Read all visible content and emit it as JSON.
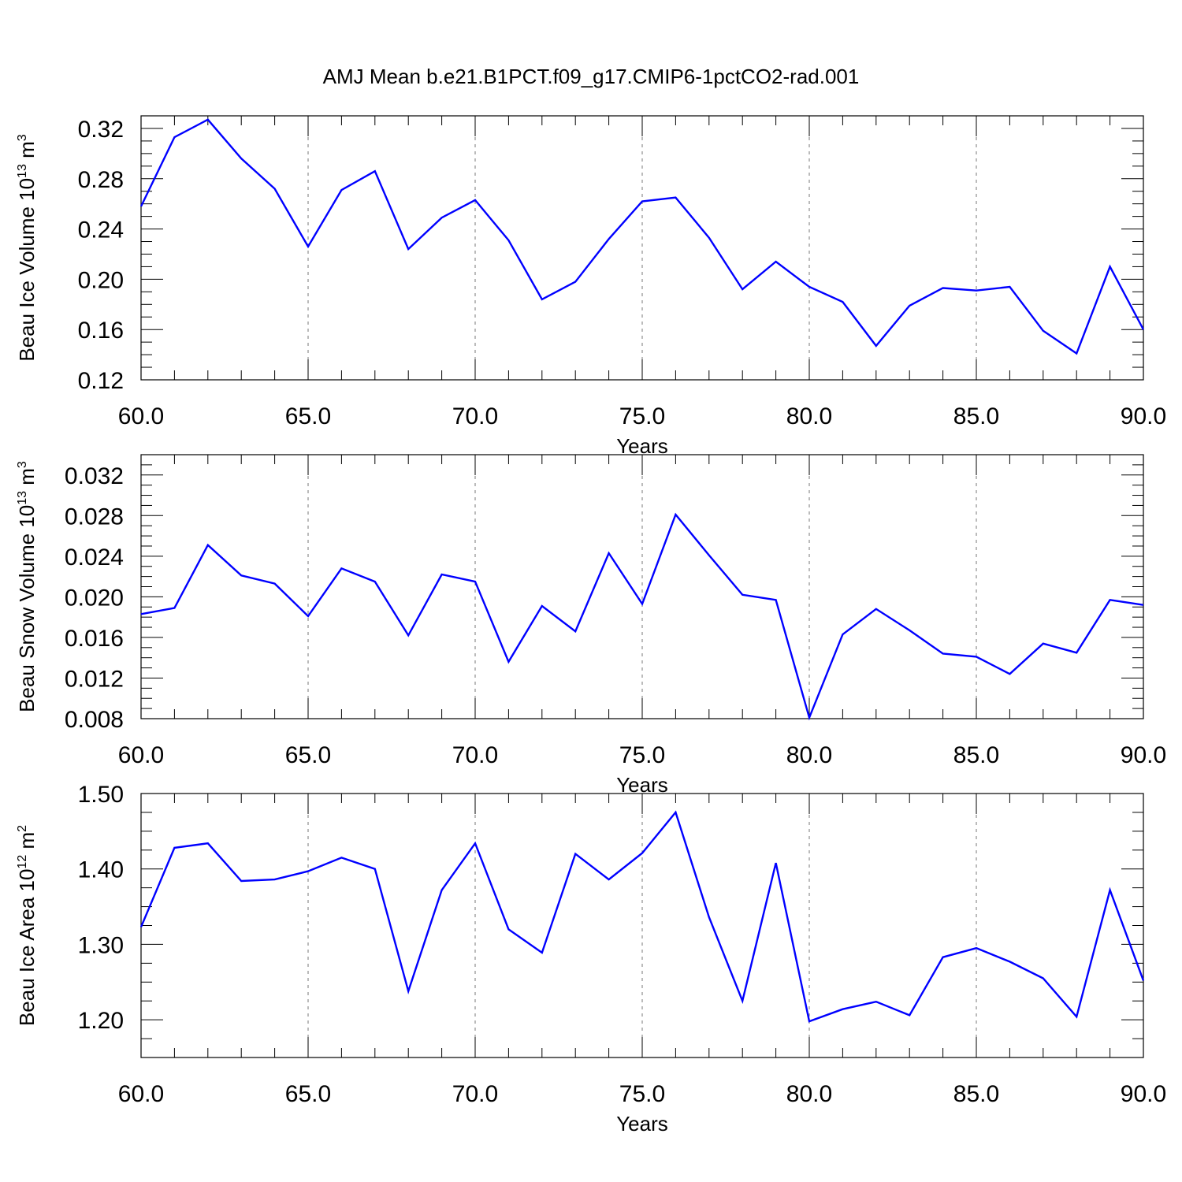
{
  "title": "AMJ Mean b.e21.B1PCT.f09_g17.CMIP6-1pctCO2-rad.001",
  "colors": {
    "line": "#0000ff",
    "axis": "#000000",
    "grid": "#777777"
  },
  "chart_data": [
    {
      "type": "line",
      "title": "",
      "xlabel": "Years",
      "ylabel_main": "Beau Ice Volume 10",
      "ylabel_sup": "13",
      "ylabel_unit": "m",
      "ylabel_unit_sup": "3",
      "xlim": [
        60,
        90
      ],
      "ylim": [
        0.12,
        0.33
      ],
      "xticks": [
        "60.0",
        "65.0",
        "70.0",
        "75.0",
        "80.0",
        "85.0",
        "90.0"
      ],
      "yticks": [
        "0.12",
        "0.16",
        "0.20",
        "0.24",
        "0.28",
        "0.32"
      ],
      "x": [
        60,
        61,
        62,
        63,
        64,
        65,
        66,
        67,
        68,
        69,
        70,
        71,
        72,
        73,
        74,
        75,
        76,
        77,
        78,
        79,
        80,
        81,
        82,
        83,
        84,
        85,
        86,
        87,
        88,
        89,
        90
      ],
      "series": [
        {
          "values": [
            0.258,
            0.313,
            0.327,
            0.296,
            0.272,
            0.226,
            0.271,
            0.286,
            0.224,
            0.249,
            0.263,
            0.231,
            0.184,
            0.198,
            0.232,
            0.262,
            0.265,
            0.233,
            0.192,
            0.214,
            0.194,
            0.182,
            0.147,
            0.179,
            0.193,
            0.191,
            0.194,
            0.159,
            0.141,
            0.21,
            0.16
          ]
        }
      ],
      "grid": "dashed vertical at major x ticks"
    },
    {
      "type": "line",
      "title": "",
      "xlabel": "Years",
      "ylabel_main": "Beau Snow Volume 10",
      "ylabel_sup": "13",
      "ylabel_unit": "m",
      "ylabel_unit_sup": "3",
      "xlim": [
        60,
        90
      ],
      "ylim": [
        0.008,
        0.034
      ],
      "xticks": [
        "60.0",
        "65.0",
        "70.0",
        "75.0",
        "80.0",
        "85.0",
        "90.0"
      ],
      "yticks": [
        "0.008",
        "0.012",
        "0.016",
        "0.020",
        "0.024",
        "0.028",
        "0.032"
      ],
      "x": [
        60,
        61,
        62,
        63,
        64,
        65,
        66,
        67,
        68,
        69,
        70,
        71,
        72,
        73,
        74,
        75,
        76,
        77,
        78,
        79,
        80,
        81,
        82,
        83,
        84,
        85,
        86,
        87,
        88,
        89,
        90
      ],
      "series": [
        {
          "values": [
            0.0183,
            0.0189,
            0.0251,
            0.0221,
            0.0213,
            0.0181,
            0.0228,
            0.0215,
            0.0162,
            0.0222,
            0.0215,
            0.0136,
            0.0191,
            0.0166,
            0.0243,
            0.0193,
            0.0281,
            0.0241,
            0.0202,
            0.0197,
            0.0081,
            0.0163,
            0.0188,
            0.0167,
            0.0144,
            0.0141,
            0.0124,
            0.0154,
            0.0145,
            0.0197,
            0.0192
          ]
        }
      ],
      "grid": "dashed vertical at major x ticks"
    },
    {
      "type": "line",
      "title": "",
      "xlabel": "Years",
      "ylabel_main": "Beau Ice Area 10",
      "ylabel_sup": "12",
      "ylabel_unit": "m",
      "ylabel_unit_sup": "2",
      "xlim": [
        60,
        90
      ],
      "ylim": [
        1.15,
        1.5
      ],
      "xticks": [
        "60.0",
        "65.0",
        "70.0",
        "75.0",
        "80.0",
        "85.0",
        "90.0"
      ],
      "yticks": [
        "1.20",
        "1.30",
        "1.40",
        "1.50"
      ],
      "x": [
        60,
        61,
        62,
        63,
        64,
        65,
        66,
        67,
        68,
        69,
        70,
        71,
        72,
        73,
        74,
        75,
        76,
        77,
        78,
        79,
        80,
        81,
        82,
        83,
        84,
        85,
        86,
        87,
        88,
        89,
        90
      ],
      "series": [
        {
          "values": [
            1.323,
            1.428,
            1.434,
            1.384,
            1.386,
            1.397,
            1.415,
            1.4,
            1.238,
            1.372,
            1.434,
            1.32,
            1.289,
            1.42,
            1.386,
            1.421,
            1.475,
            1.336,
            1.225,
            1.408,
            1.198,
            1.214,
            1.224,
            1.206,
            1.283,
            1.295,
            1.277,
            1.255,
            1.204,
            1.372,
            1.252
          ]
        }
      ],
      "grid": "dashed vertical at major x ticks"
    }
  ]
}
